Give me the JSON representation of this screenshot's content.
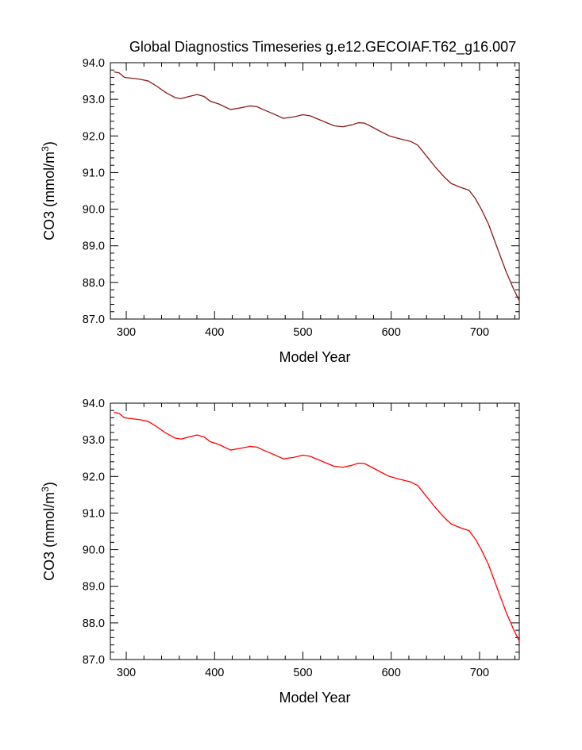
{
  "chart_data": [
    {
      "type": "line",
      "title": "Global Diagnostics Timeseries g.e12.GECOIAF.T62_g16.007",
      "xlabel": "Model Year",
      "ylabel_main": "CO3 (mmol/m",
      "ylabel_sup": "3",
      "ylabel_close": ")",
      "xlim": [
        282,
        745
      ],
      "ylim": [
        87.0,
        94.0
      ],
      "x_ticks": [
        "300",
        "400",
        "500",
        "600",
        "700"
      ],
      "y_ticks": [
        "87.0",
        "88.0",
        "89.0",
        "90.0",
        "91.0",
        "92.0",
        "93.0",
        "94.0"
      ],
      "grid": false,
      "series": [
        {
          "color": "#8b1a1a",
          "x": [
            286,
            292,
            298,
            305,
            315,
            325,
            335,
            345,
            355,
            362,
            370,
            380,
            388,
            395,
            405,
            418,
            430,
            440,
            448,
            455,
            465,
            478,
            490,
            500,
            508,
            515,
            525,
            535,
            545,
            555,
            563,
            570,
            578,
            588,
            598,
            610,
            622,
            630,
            640,
            650,
            660,
            668,
            678,
            688,
            695,
            702,
            710,
            720,
            730,
            738,
            745
          ],
          "values": [
            93.75,
            93.72,
            93.6,
            93.58,
            93.55,
            93.5,
            93.35,
            93.18,
            93.05,
            93.02,
            93.07,
            93.13,
            93.08,
            92.95,
            92.87,
            92.72,
            92.77,
            92.82,
            92.8,
            92.72,
            92.62,
            92.48,
            92.52,
            92.58,
            92.55,
            92.48,
            92.38,
            92.28,
            92.25,
            92.3,
            92.36,
            92.35,
            92.25,
            92.12,
            92.0,
            91.92,
            91.85,
            91.75,
            91.45,
            91.15,
            90.88,
            90.7,
            90.6,
            90.52,
            90.3,
            90.0,
            89.6,
            88.95,
            88.3,
            87.85,
            87.5
          ]
        }
      ]
    },
    {
      "type": "line",
      "title": "",
      "xlabel": "Model Year",
      "ylabel_main": "CO3 (mmol/m",
      "ylabel_sup": "3",
      "ylabel_close": ")",
      "xlim": [
        282,
        745
      ],
      "ylim": [
        87.0,
        94.0
      ],
      "x_ticks": [
        "300",
        "400",
        "500",
        "600",
        "700"
      ],
      "y_ticks": [
        "87.0",
        "88.0",
        "89.0",
        "90.0",
        "91.0",
        "92.0",
        "93.0",
        "94.0"
      ],
      "grid": false,
      "series": [
        {
          "color": "#ff0000",
          "x": [
            286,
            292,
            298,
            305,
            315,
            325,
            335,
            345,
            355,
            362,
            370,
            380,
            388,
            395,
            405,
            418,
            430,
            440,
            448,
            455,
            465,
            478,
            490,
            500,
            508,
            515,
            525,
            535,
            545,
            555,
            563,
            570,
            578,
            588,
            598,
            610,
            622,
            630,
            640,
            650,
            660,
            668,
            678,
            688,
            695,
            702,
            710,
            720,
            730,
            738,
            745
          ],
          "values": [
            93.75,
            93.72,
            93.6,
            93.58,
            93.55,
            93.5,
            93.35,
            93.18,
            93.05,
            93.02,
            93.07,
            93.13,
            93.08,
            92.95,
            92.87,
            92.72,
            92.77,
            92.82,
            92.8,
            92.72,
            92.62,
            92.48,
            92.52,
            92.58,
            92.55,
            92.48,
            92.38,
            92.28,
            92.25,
            92.3,
            92.36,
            92.35,
            92.25,
            92.12,
            92.0,
            91.92,
            91.85,
            91.75,
            91.45,
            91.15,
            90.88,
            90.7,
            90.6,
            90.52,
            90.3,
            90.0,
            89.6,
            88.95,
            88.3,
            87.85,
            87.5
          ]
        }
      ]
    }
  ]
}
